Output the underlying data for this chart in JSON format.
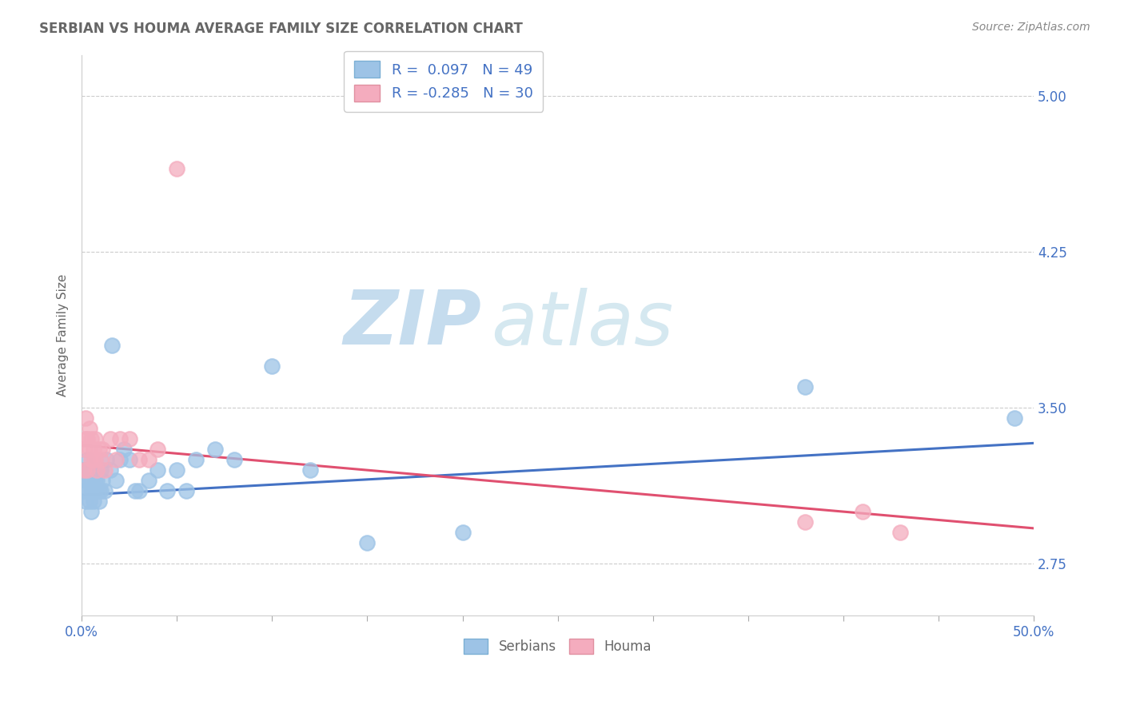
{
  "title": "SERBIAN VS HOUMA AVERAGE FAMILY SIZE CORRELATION CHART",
  "source": "Source: ZipAtlas.com",
  "ylabel": "Average Family Size",
  "xlim": [
    0.0,
    0.5
  ],
  "ylim": [
    2.5,
    5.2
  ],
  "yticks": [
    2.75,
    3.5,
    4.25,
    5.0
  ],
  "ytick_labels": [
    "2.75",
    "3.50",
    "4.25",
    "5.00"
  ],
  "serbian_R": 0.097,
  "serbian_N": 49,
  "houma_R": -0.285,
  "houma_N": 30,
  "serbian_color": "#9DC3E6",
  "houma_color": "#F4ACBE",
  "serbian_line_color": "#4472C4",
  "houma_line_color": "#E05070",
  "legend_label_serbian": "Serbians",
  "legend_label_houma": "Houma",
  "serbian_x": [
    0.001,
    0.001,
    0.002,
    0.002,
    0.003,
    0.003,
    0.003,
    0.004,
    0.004,
    0.004,
    0.005,
    0.005,
    0.005,
    0.006,
    0.006,
    0.006,
    0.007,
    0.007,
    0.008,
    0.008,
    0.009,
    0.009,
    0.01,
    0.01,
    0.011,
    0.012,
    0.013,
    0.015,
    0.016,
    0.018,
    0.02,
    0.022,
    0.025,
    0.028,
    0.03,
    0.035,
    0.04,
    0.045,
    0.05,
    0.055,
    0.06,
    0.07,
    0.08,
    0.1,
    0.12,
    0.15,
    0.2,
    0.38,
    0.49
  ],
  "serbian_y": [
    3.1,
    3.2,
    3.15,
    3.05,
    3.1,
    3.2,
    3.25,
    3.05,
    3.15,
    3.2,
    3.1,
    3.0,
    3.15,
    3.1,
    3.2,
    3.05,
    3.15,
    3.1,
    3.2,
    3.15,
    3.1,
    3.05,
    3.2,
    3.1,
    3.15,
    3.1,
    3.25,
    3.2,
    3.8,
    3.15,
    3.25,
    3.3,
    3.25,
    3.1,
    3.1,
    3.15,
    3.2,
    3.1,
    3.2,
    3.1,
    3.25,
    3.3,
    3.25,
    3.7,
    3.2,
    2.85,
    2.9,
    3.6,
    3.45
  ],
  "houma_x": [
    0.001,
    0.001,
    0.002,
    0.002,
    0.003,
    0.003,
    0.004,
    0.004,
    0.005,
    0.005,
    0.006,
    0.006,
    0.007,
    0.007,
    0.008,
    0.009,
    0.01,
    0.011,
    0.012,
    0.015,
    0.018,
    0.02,
    0.025,
    0.03,
    0.035,
    0.04,
    0.05,
    0.38,
    0.41,
    0.43
  ],
  "houma_y": [
    3.2,
    3.3,
    3.35,
    3.45,
    3.2,
    3.35,
    3.3,
    3.4,
    3.25,
    3.35,
    3.25,
    3.3,
    3.25,
    3.35,
    3.2,
    3.3,
    3.25,
    3.3,
    3.2,
    3.35,
    3.25,
    3.35,
    3.35,
    3.25,
    3.25,
    3.3,
    4.65,
    2.95,
    3.0,
    2.9
  ],
  "watermark_zip": "ZIP",
  "watermark_atlas": "atlas",
  "watermark_zip_color": "#C5DCEE",
  "watermark_atlas_color": "#D5E8F0",
  "background_color": "#FFFFFF",
  "grid_color": "#CCCCCC",
  "serbian_trendline": [
    3.08,
    3.33
  ],
  "houma_trendline": [
    3.32,
    2.92
  ]
}
